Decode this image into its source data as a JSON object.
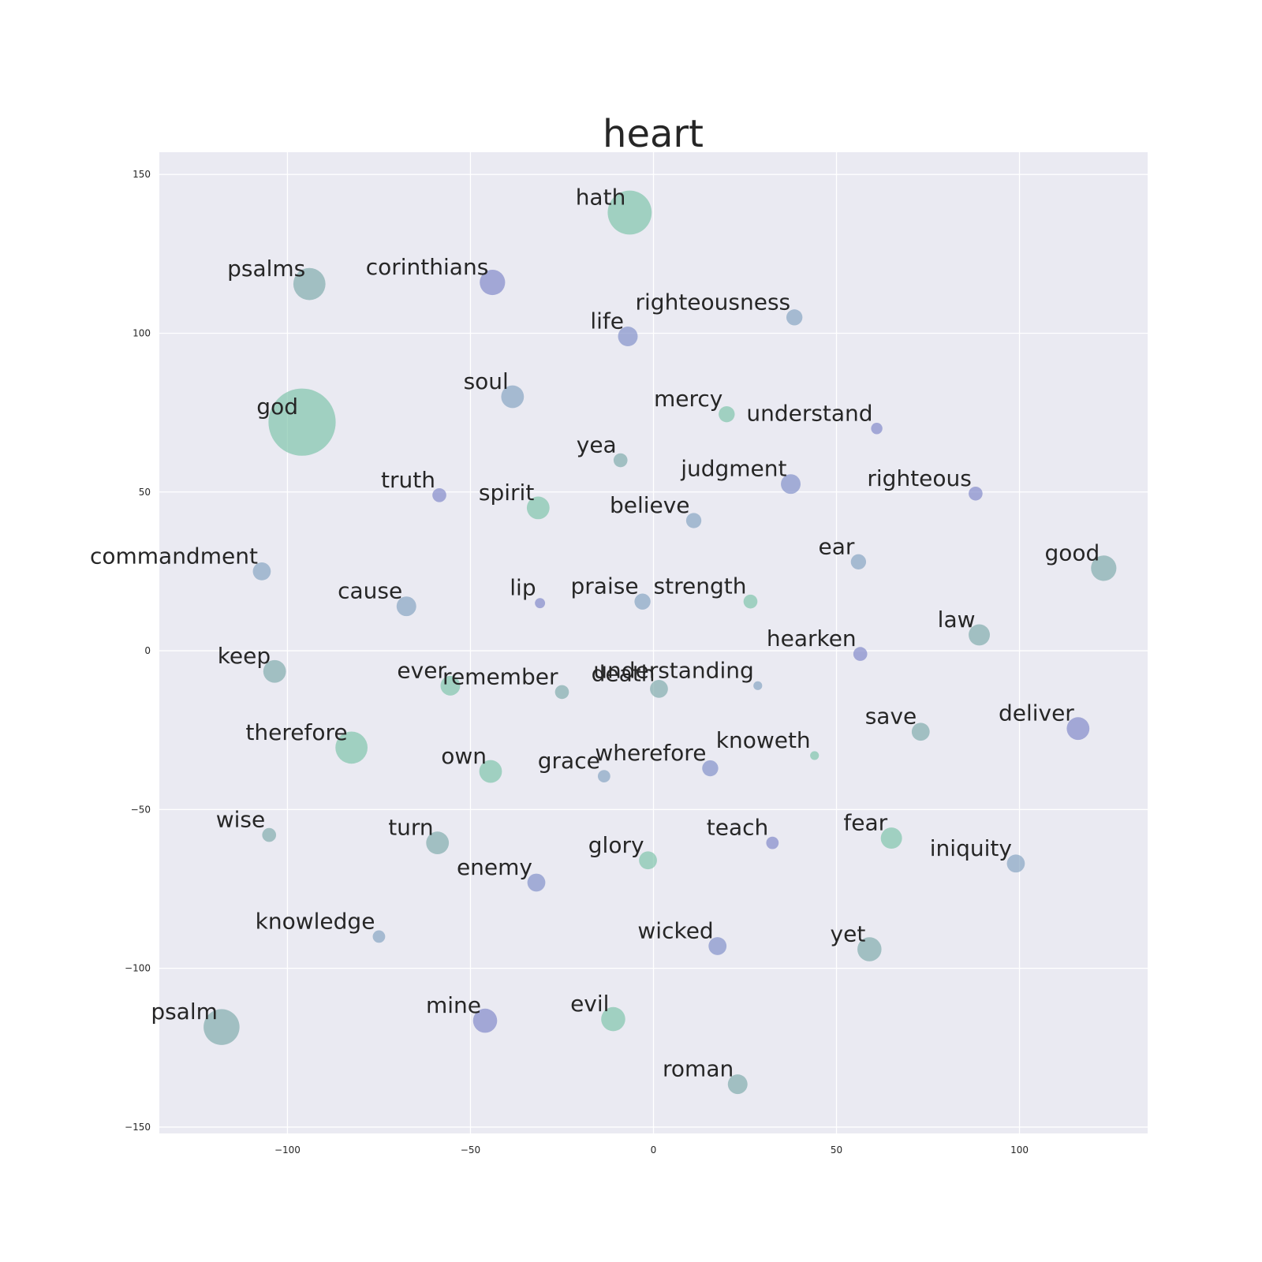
{
  "chart_data": {
    "type": "scatter",
    "title": "heart",
    "xlabel": "",
    "ylabel": "",
    "xlim": [
      -135,
      135
    ],
    "ylim": [
      -152,
      157
    ],
    "x_ticks": [
      -100,
      -50,
      0,
      50,
      100
    ],
    "y_ticks": [
      150,
      100,
      50,
      0,
      -50,
      -100,
      -150
    ],
    "x_tick_labels": [
      "−100",
      "−50",
      "0",
      "50",
      "100"
    ],
    "y_tick_labels": [
      "150",
      "100",
      "50",
      "0",
      "−50",
      "−100",
      "−150"
    ],
    "grid": true,
    "plot_background": "#eaeaf2",
    "palette": [
      "#8a9fd6",
      "#7f9fbf",
      "#7aa8a8",
      "#78c2a6",
      "#7b82c6"
    ],
    "points": [
      {
        "label": "hath",
        "x": -6.5,
        "y": 138,
        "size": 1500,
        "color": "#78c2a6"
      },
      {
        "label": "psalms",
        "x": -94,
        "y": 115.5,
        "size": 800,
        "color": "#7aa8a8"
      },
      {
        "label": "corinthians",
        "x": -44,
        "y": 116,
        "size": 500,
        "color": "#7b82c6"
      },
      {
        "label": "righteousness",
        "x": 38.5,
        "y": 105,
        "size": 200,
        "color": "#7f9fbf"
      },
      {
        "label": "life",
        "x": -7,
        "y": 99,
        "size": 300,
        "color": "#7b8ac6"
      },
      {
        "label": "soul",
        "x": -38.5,
        "y": 80,
        "size": 400,
        "color": "#7f9fbf"
      },
      {
        "label": "god",
        "x": -96,
        "y": 72,
        "size": 3500,
        "color": "#78c2a6"
      },
      {
        "label": "mercy",
        "x": 20,
        "y": 74.5,
        "size": 200,
        "color": "#78c2a6"
      },
      {
        "label": "understand",
        "x": 61,
        "y": 70,
        "size": 100,
        "color": "#7b82c6"
      },
      {
        "label": "yea",
        "x": -9,
        "y": 60,
        "size": 150,
        "color": "#7aa8a8"
      },
      {
        "label": "judgment",
        "x": 37.5,
        "y": 52.5,
        "size": 300,
        "color": "#7b8ac6"
      },
      {
        "label": "righteous",
        "x": 88,
        "y": 49.5,
        "size": 150,
        "color": "#7b82c6"
      },
      {
        "label": "truth",
        "x": -58.5,
        "y": 49,
        "size": 150,
        "color": "#7b82c6"
      },
      {
        "label": "spirit",
        "x": -31.5,
        "y": 45,
        "size": 400,
        "color": "#78c2a6"
      },
      {
        "label": "believe",
        "x": 11,
        "y": 41,
        "size": 180,
        "color": "#7f9fbf"
      },
      {
        "label": "ear",
        "x": 56,
        "y": 28,
        "size": 180,
        "color": "#7f9fbf"
      },
      {
        "label": "good",
        "x": 123,
        "y": 26,
        "size": 500,
        "color": "#7aa8a8"
      },
      {
        "label": "commandment",
        "x": -107,
        "y": 25,
        "size": 250,
        "color": "#7f9fbf"
      },
      {
        "label": "cause",
        "x": -67.5,
        "y": 14,
        "size": 300,
        "color": "#7f9fbf"
      },
      {
        "label": "lip",
        "x": -31,
        "y": 15,
        "size": 80,
        "color": "#7b82c6"
      },
      {
        "label": "praise",
        "x": -3,
        "y": 15.5,
        "size": 200,
        "color": "#7f9fbf"
      },
      {
        "label": "strength",
        "x": 26.5,
        "y": 15.5,
        "size": 150,
        "color": "#78c2a6"
      },
      {
        "label": "law",
        "x": 89,
        "y": 5,
        "size": 350,
        "color": "#7aa8a8"
      },
      {
        "label": "hearken",
        "x": 56.5,
        "y": -1,
        "size": 150,
        "color": "#7b82c6"
      },
      {
        "label": "keep",
        "x": -103.5,
        "y": -6.5,
        "size": 400,
        "color": "#7aa8a8"
      },
      {
        "label": "ever",
        "x": -55.5,
        "y": -11,
        "size": 300,
        "color": "#78c2a6"
      },
      {
        "label": "remember",
        "x": -25,
        "y": -13,
        "size": 150,
        "color": "#7aa8a8"
      },
      {
        "label": "understanding",
        "x": 28.5,
        "y": -11,
        "size": 60,
        "color": "#7f9fbf"
      },
      {
        "label": "death",
        "x": 1.5,
        "y": -12,
        "size": 250,
        "color": "#7aa8a8"
      },
      {
        "label": "therefore",
        "x": -82.5,
        "y": -30.5,
        "size": 800,
        "color": "#78c2a6"
      },
      {
        "label": "save",
        "x": 73,
        "y": -25.5,
        "size": 250,
        "color": "#7aa8a8"
      },
      {
        "label": "deliver",
        "x": 116,
        "y": -24.5,
        "size": 400,
        "color": "#7b82c6"
      },
      {
        "label": "knoweth",
        "x": 44,
        "y": -33,
        "size": 60,
        "color": "#78c2a6"
      },
      {
        "label": "own",
        "x": -44.5,
        "y": -38,
        "size": 400,
        "color": "#78c2a6"
      },
      {
        "label": "grace",
        "x": -13.5,
        "y": -39.5,
        "size": 120,
        "color": "#7f9fbf"
      },
      {
        "label": "wherefore",
        "x": 15.5,
        "y": -37,
        "size": 200,
        "color": "#7b8ac6"
      },
      {
        "label": "wise",
        "x": -105,
        "y": -58,
        "size": 150,
        "color": "#7aa8a8"
      },
      {
        "label": "turn",
        "x": -59,
        "y": -60.5,
        "size": 400,
        "color": "#7aa8a8"
      },
      {
        "label": "teach",
        "x": 32.5,
        "y": -60.5,
        "size": 120,
        "color": "#7b82c6"
      },
      {
        "label": "fear",
        "x": 65,
        "y": -59,
        "size": 350,
        "color": "#78c2a6"
      },
      {
        "label": "iniquity",
        "x": 99,
        "y": -67,
        "size": 250,
        "color": "#7f9fbf"
      },
      {
        "label": "glory",
        "x": -1.5,
        "y": -66,
        "size": 250,
        "color": "#78c2a6"
      },
      {
        "label": "enemy",
        "x": -32,
        "y": -73,
        "size": 250,
        "color": "#7b8ac6"
      },
      {
        "label": "knowledge",
        "x": -75,
        "y": -90,
        "size": 120,
        "color": "#7f9fbf"
      },
      {
        "label": "wicked",
        "x": 17.5,
        "y": -93,
        "size": 250,
        "color": "#7b8ac6"
      },
      {
        "label": "yet",
        "x": 59,
        "y": -94,
        "size": 450,
        "color": "#7aa8a8"
      },
      {
        "label": "psalm",
        "x": -118,
        "y": -118.5,
        "size": 1000,
        "color": "#7aa8a8"
      },
      {
        "label": "mine",
        "x": -46,
        "y": -116.5,
        "size": 450,
        "color": "#7b82c6"
      },
      {
        "label": "evil",
        "x": -11,
        "y": -116,
        "size": 450,
        "color": "#78c2a6"
      },
      {
        "label": "roman",
        "x": 23,
        "y": -136.5,
        "size": 300,
        "color": "#7aa8a8"
      }
    ]
  }
}
